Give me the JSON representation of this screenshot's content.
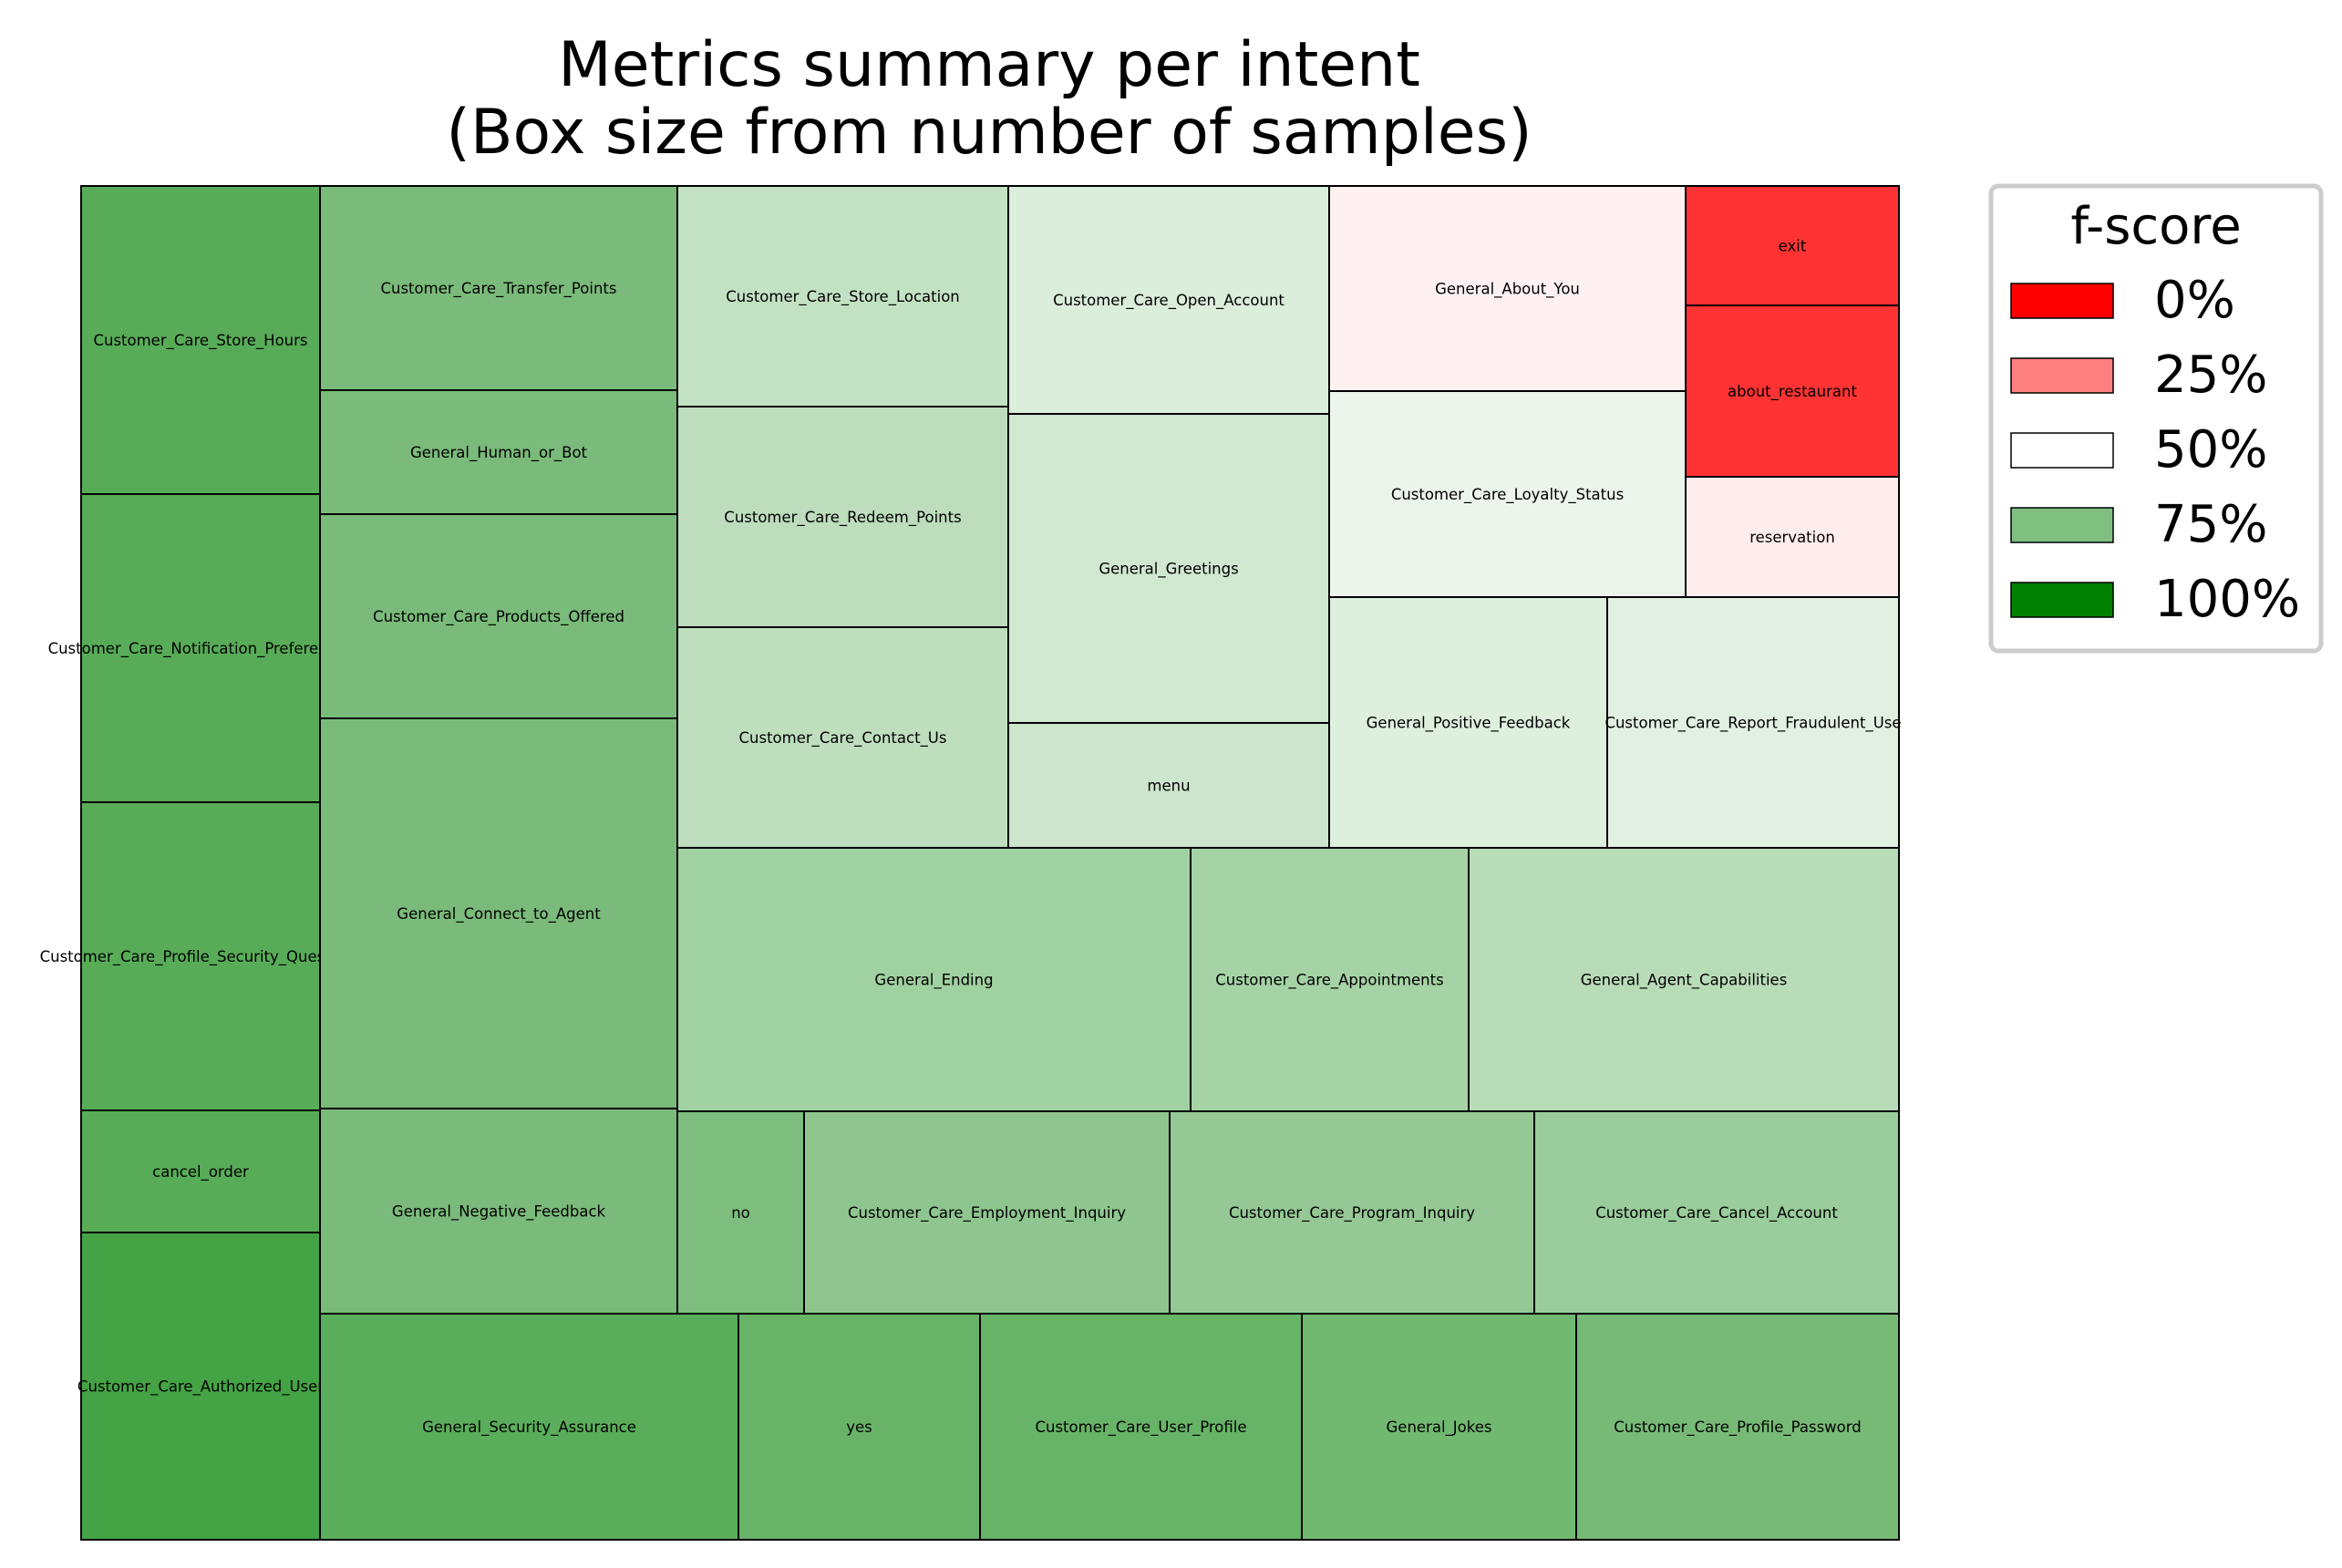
{
  "chart_data": {
    "type": "treemap",
    "title": [
      "Metrics summary per intent",
      "(Box size from number of samples)"
    ],
    "legend": {
      "title": "f-score",
      "placement": "top-right outside",
      "entries": [
        {
          "label": "0%",
          "color": "#ff0000"
        },
        {
          "label": "25%",
          "color": "#ff8080"
        },
        {
          "label": "50%",
          "color": "#ffffff"
        },
        {
          "label": "75%",
          "color": "#7fbf7f"
        },
        {
          "label": "100%",
          "color": "#008000"
        }
      ]
    },
    "cells": [
      {
        "label": "Customer_Care_Store_Hours",
        "f_score": 0.84,
        "color": "#58ac58"
      },
      {
        "label": "Customer_Care_Notification_Preferences",
        "f_score": 0.84,
        "color": "#58ac58"
      },
      {
        "label": "Customer_Care_Profile_Security_Questions",
        "f_score": 0.84,
        "color": "#58ac58"
      },
      {
        "label": "cancel_order",
        "f_score": 0.84,
        "color": "#58ac58"
      },
      {
        "label": "Customer_Care_Authorized_User",
        "f_score": 0.88,
        "color": "#44a344"
      },
      {
        "label": "Customer_Care_Transfer_Points",
        "f_score": 0.76,
        "color": "#7aba7a"
      },
      {
        "label": "General_Human_or_Bot",
        "f_score": 0.76,
        "color": "#7aba7a"
      },
      {
        "label": "Customer_Care_Products_Offered",
        "f_score": 0.76,
        "color": "#7aba7a"
      },
      {
        "label": "General_Connect_to_Agent",
        "f_score": 0.76,
        "color": "#7aba7a"
      },
      {
        "label": "General_Negative_Feedback",
        "f_score": 0.76,
        "color": "#7aba7a"
      },
      {
        "label": "Customer_Care_Store_Location",
        "f_score": 0.62,
        "color": "#c3e2c3"
      },
      {
        "label": "Customer_Care_Redeem_Points",
        "f_score": 0.63,
        "color": "#bdddbd"
      },
      {
        "label": "Customer_Care_Contact_Us",
        "f_score": 0.63,
        "color": "#bedebe"
      },
      {
        "label": "Customer_Care_Open_Account",
        "f_score": 0.58,
        "color": "#dbeddb"
      },
      {
        "label": "General_Greetings",
        "f_score": 0.6,
        "color": "#d0e7d0"
      },
      {
        "label": "menu",
        "f_score": 0.61,
        "color": "#cce5cc"
      },
      {
        "label": "General_About_You",
        "f_score": 0.47,
        "color": "#fff1f1"
      },
      {
        "label": "Customer_Care_Loyalty_Status",
        "f_score": 0.54,
        "color": "#ecf5ec"
      },
      {
        "label": "exit",
        "f_score": 0.1,
        "color": "#ff3333"
      },
      {
        "label": "about_restaurant",
        "f_score": 0.1,
        "color": "#ff3333"
      },
      {
        "label": "reservation",
        "f_score": 0.47,
        "color": "#ffeded"
      },
      {
        "label": "General_Positive_Feedback",
        "f_score": 0.57,
        "color": "#deefde"
      },
      {
        "label": "Customer_Care_Report_Fraudulent_Use",
        "f_score": 0.56,
        "color": "#e2f0e2"
      },
      {
        "label": "General_Ending",
        "f_score": 0.69,
        "color": "#a0d1a0"
      },
      {
        "label": "Customer_Care_Appointments",
        "f_score": 0.68,
        "color": "#a5d3a5"
      },
      {
        "label": "General_Agent_Capabilities",
        "f_score": 0.64,
        "color": "#b8dcb8"
      },
      {
        "label": "no",
        "f_score": 0.75,
        "color": "#7dbd7d"
      },
      {
        "label": "Customer_Care_Employment_Inquiry",
        "f_score": 0.72,
        "color": "#8fc58f"
      },
      {
        "label": "Customer_Care_Program_Inquiry",
        "f_score": 0.71,
        "color": "#95c895"
      },
      {
        "label": "Customer_Care_Cancel_Account",
        "f_score": 0.7,
        "color": "#9bcc9b"
      },
      {
        "label": "General_Security_Assurance",
        "f_score": 0.83,
        "color": "#5aad5a"
      },
      {
        "label": "yes",
        "f_score": 0.8,
        "color": "#68b368"
      },
      {
        "label": "Customer_Care_User_Profile",
        "f_score": 0.8,
        "color": "#67b367"
      },
      {
        "label": "General_Jokes",
        "f_score": 0.78,
        "color": "#71b871"
      },
      {
        "label": "Customer_Care_Profile_Password",
        "f_score": 0.77,
        "color": "#76ba76"
      }
    ]
  }
}
